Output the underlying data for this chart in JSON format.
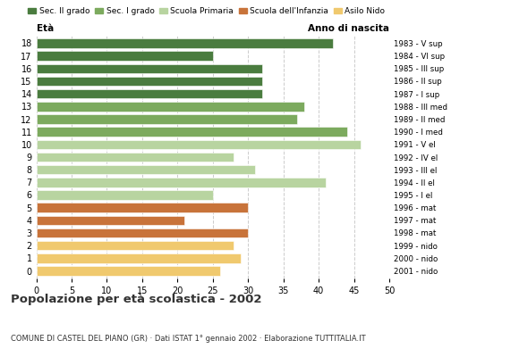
{
  "ages": [
    18,
    17,
    16,
    15,
    14,
    13,
    12,
    11,
    10,
    9,
    8,
    7,
    6,
    5,
    4,
    3,
    2,
    1,
    0
  ],
  "values": [
    42,
    25,
    32,
    32,
    32,
    38,
    37,
    44,
    46,
    28,
    31,
    41,
    25,
    30,
    21,
    30,
    28,
    29,
    26
  ],
  "right_labels": [
    "1983 - V sup",
    "1984 - VI sup",
    "1985 - III sup",
    "1986 - II sup",
    "1987 - I sup",
    "1988 - III med",
    "1989 - II med",
    "1990 - I med",
    "1991 - V el",
    "1992 - IV el",
    "1993 - III el",
    "1994 - II el",
    "1995 - I el",
    "1996 - mat",
    "1997 - mat",
    "1998 - mat",
    "1999 - nido",
    "2000 - nido",
    "2001 - nido"
  ],
  "colors": [
    "#4a7c3f",
    "#4a7c3f",
    "#4a7c3f",
    "#4a7c3f",
    "#4a7c3f",
    "#7caa5e",
    "#7caa5e",
    "#7caa5e",
    "#b8d4a0",
    "#b8d4a0",
    "#b8d4a0",
    "#b8d4a0",
    "#b8d4a0",
    "#c8733a",
    "#c8733a",
    "#c8733a",
    "#f0c96e",
    "#f0c96e",
    "#f0c96e"
  ],
  "legend_labels": [
    "Sec. II grado",
    "Sec. I grado",
    "Scuola Primaria",
    "Scuola dell'Infanzia",
    "Asilo Nido"
  ],
  "legend_colors": [
    "#4a7c3f",
    "#7caa5e",
    "#b8d4a0",
    "#c8733a",
    "#f0c96e"
  ],
  "title": "Popolazione per età scolastica - 2002",
  "subtitle": "COMUNE DI CASTEL DEL PIANO (GR) · Dati ISTAT 1° gennaio 2002 · Elaborazione TUTTITALIA.IT",
  "xlabel_left": "Età",
  "xlabel_right": "Anno di nascita",
  "xlim": [
    0,
    50
  ],
  "xticks": [
    0,
    5,
    10,
    15,
    20,
    25,
    30,
    35,
    40,
    45,
    50
  ],
  "bar_height": 0.75,
  "bg_color": "#ffffff",
  "grid_color": "#cccccc"
}
